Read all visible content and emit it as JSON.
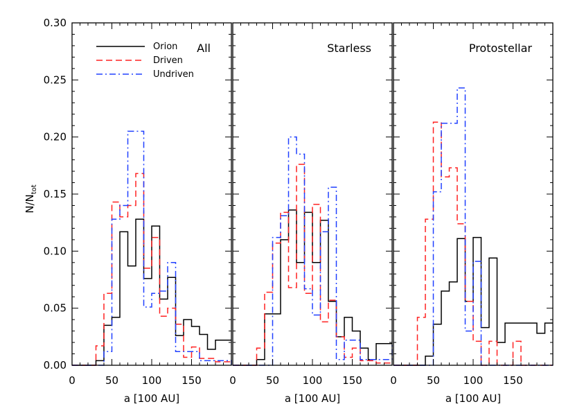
{
  "figure": {
    "ylabel_main": "N/N",
    "ylabel_sub": "tot"
  },
  "chart_data": [
    {
      "type": "step-histogram",
      "panel_label": "All",
      "xlabel": "a [100 AU]",
      "ylabel": "N/N_tot",
      "xlim": [
        0,
        200
      ],
      "ylim": [
        0,
        0.3
      ],
      "x_ticks": [
        0,
        50,
        100,
        150
      ],
      "y_ticks": [
        0.0,
        0.05,
        0.1,
        0.15,
        0.2,
        0.25,
        0.3
      ],
      "y_tick_labels": [
        "0.00",
        "0.05",
        "0.10",
        "0.15",
        "0.20",
        "0.25",
        "0.30"
      ],
      "legend": {
        "placement": "top-left",
        "entries": [
          "Orion",
          "Driven",
          "Undriven"
        ]
      },
      "series": [
        {
          "name": "Orion",
          "color": "#000000",
          "dash": "solid",
          "x": [
            0,
            30,
            40,
            50,
            60,
            70,
            80,
            90,
            100,
            110,
            120,
            130,
            140,
            150,
            160,
            170,
            180,
            200
          ],
          "y": [
            0.0,
            0.004,
            0.035,
            0.042,
            0.117,
            0.087,
            0.128,
            0.076,
            0.122,
            0.058,
            0.077,
            0.026,
            0.04,
            0.034,
            0.027,
            0.014,
            0.022,
            0.022
          ]
        },
        {
          "name": "Driven",
          "color": "#ff2020",
          "dash": "dashed",
          "x": [
            0,
            20,
            30,
            40,
            50,
            60,
            70,
            80,
            90,
            100,
            110,
            120,
            130,
            140,
            150,
            160,
            180,
            200
          ],
          "y": [
            0.0,
            0.0,
            0.017,
            0.063,
            0.143,
            0.13,
            0.14,
            0.168,
            0.085,
            0.112,
            0.043,
            0.05,
            0.036,
            0.007,
            0.016,
            0.006,
            0.003,
            0.003
          ]
        },
        {
          "name": "Undriven",
          "color": "#2040ff",
          "dash": "dashdot",
          "x": [
            0,
            40,
            50,
            60,
            70,
            80,
            90,
            100,
            110,
            120,
            130,
            140,
            160,
            200
          ],
          "y": [
            0.0,
            0.012,
            0.128,
            0.14,
            0.205,
            0.205,
            0.051,
            0.063,
            0.065,
            0.09,
            0.012,
            0.012,
            0.004,
            0.0
          ]
        }
      ]
    },
    {
      "type": "step-histogram",
      "panel_label": "Starless",
      "xlabel": "a [100 AU]",
      "ylabel": "",
      "xlim": [
        0,
        200
      ],
      "ylim": [
        0,
        0.3
      ],
      "x_ticks": [
        0,
        50,
        100,
        150
      ],
      "series": [
        {
          "name": "Orion",
          "color": "#000000",
          "dash": "solid",
          "x": [
            0,
            30,
            40,
            50,
            60,
            70,
            80,
            90,
            100,
            110,
            120,
            130,
            140,
            150,
            160,
            170,
            180,
            200
          ],
          "y": [
            0.0,
            0.005,
            0.045,
            0.045,
            0.11,
            0.136,
            0.09,
            0.134,
            0.09,
            0.127,
            0.056,
            0.025,
            0.042,
            0.03,
            0.015,
            0.005,
            0.019,
            0.019
          ]
        },
        {
          "name": "Driven",
          "color": "#ff2020",
          "dash": "dashed",
          "x": [
            0,
            20,
            30,
            40,
            50,
            60,
            70,
            80,
            90,
            100,
            110,
            120,
            130,
            140,
            150,
            160,
            180,
            200
          ],
          "y": [
            0.0,
            0.0,
            0.015,
            0.064,
            0.107,
            0.134,
            0.068,
            0.176,
            0.063,
            0.141,
            0.038,
            0.057,
            0.025,
            0.007,
            0.015,
            0.004,
            0.002,
            0.002
          ]
        },
        {
          "name": "Undriven",
          "color": "#2040ff",
          "dash": "dashdot",
          "x": [
            0,
            40,
            50,
            60,
            70,
            80,
            90,
            100,
            110,
            120,
            130,
            140,
            160,
            200
          ],
          "y": [
            0.0,
            0.0,
            0.112,
            0.131,
            0.2,
            0.185,
            0.067,
            0.044,
            0.117,
            0.156,
            0.005,
            0.022,
            0.005,
            0.02
          ]
        }
      ]
    },
    {
      "type": "step-histogram",
      "panel_label": "Protostellar",
      "xlabel": "a [100 AU]",
      "ylabel": "",
      "xlim": [
        0,
        200
      ],
      "ylim": [
        0,
        0.3
      ],
      "x_ticks": [
        0,
        50,
        100,
        150
      ],
      "series": [
        {
          "name": "Orion",
          "color": "#000000",
          "dash": "solid",
          "x": [
            0,
            40,
            50,
            60,
            70,
            80,
            90,
            100,
            110,
            120,
            130,
            140,
            150,
            160,
            180,
            190,
            200
          ],
          "y": [
            0.0,
            0.008,
            0.036,
            0.065,
            0.073,
            0.111,
            0.056,
            0.112,
            0.033,
            0.094,
            0.02,
            0.037,
            0.037,
            0.037,
            0.028,
            0.037,
            0.037
          ]
        },
        {
          "name": "Driven",
          "color": "#ff2020",
          "dash": "dashed",
          "x": [
            0,
            20,
            30,
            40,
            50,
            60,
            70,
            80,
            90,
            100,
            110,
            120,
            130,
            140,
            150,
            160,
            180,
            200
          ],
          "y": [
            0.0,
            0.0,
            0.042,
            0.128,
            0.213,
            0.165,
            0.173,
            0.124,
            0.056,
            0.021,
            0.0,
            0.021,
            0.0,
            0.0,
            0.021,
            0.0,
            0.0,
            0.0
          ]
        },
        {
          "name": "Undriven",
          "color": "#2040ff",
          "dash": "dashdot",
          "x": [
            0,
            40,
            50,
            60,
            70,
            80,
            90,
            100,
            110,
            200
          ],
          "y": [
            0.0,
            0.0,
            0.152,
            0.212,
            0.212,
            0.243,
            0.03,
            0.091,
            0.0,
            0.0
          ]
        }
      ]
    }
  ]
}
